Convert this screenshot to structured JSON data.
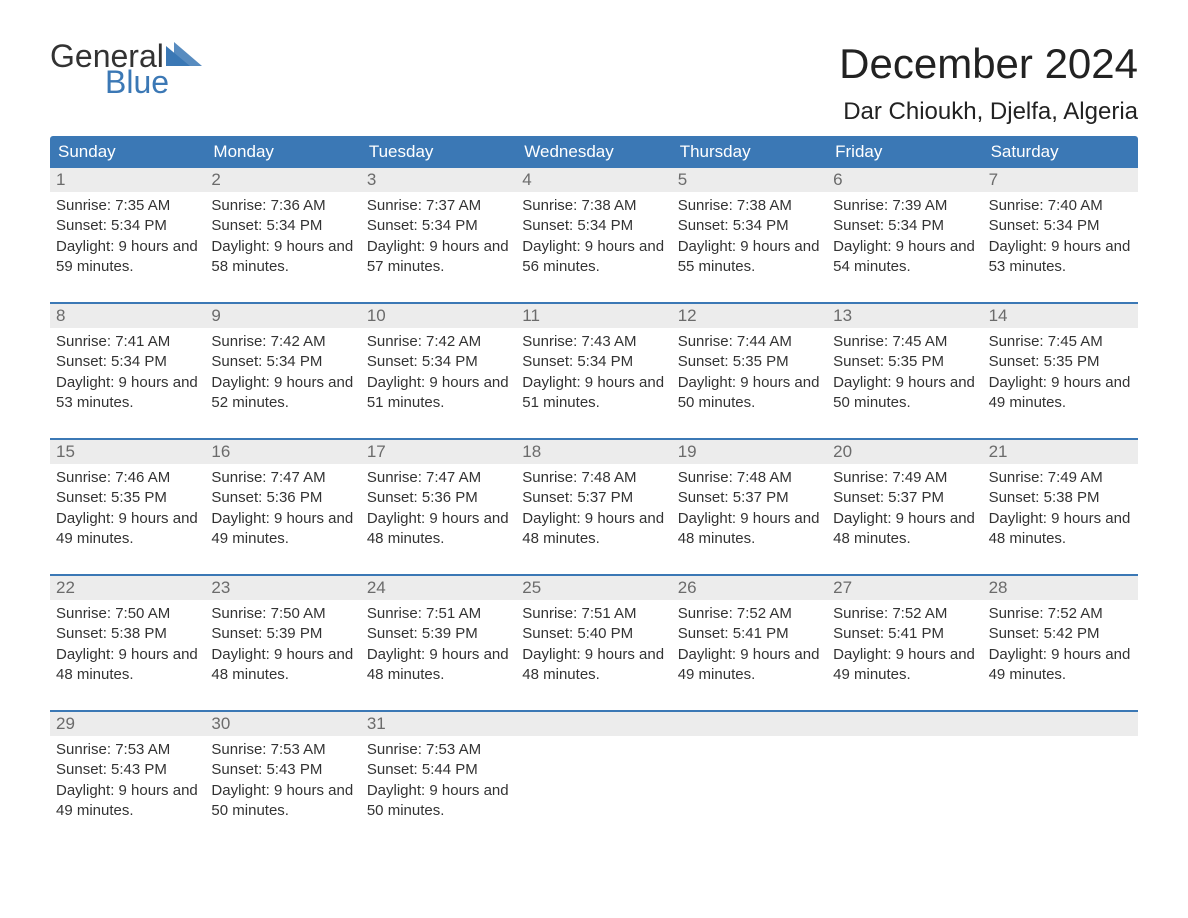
{
  "logo": {
    "text1": "General",
    "text2": "Blue",
    "tri_color": "#3b78b5"
  },
  "title": "December 2024",
  "location": "Dar Chioukh, Djelfa, Algeria",
  "colors": {
    "header_bg": "#3b78b5",
    "header_text": "#ffffff",
    "daynum_bg": "#ececec",
    "daynum_text": "#6b6b6b",
    "body_text": "#333333",
    "week_border": "#3b78b5"
  },
  "dow": [
    "Sunday",
    "Monday",
    "Tuesday",
    "Wednesday",
    "Thursday",
    "Friday",
    "Saturday"
  ],
  "weeks": [
    [
      {
        "n": "1",
        "sr": "7:35 AM",
        "ss": "5:34 PM",
        "dl": "9 hours and 59 minutes."
      },
      {
        "n": "2",
        "sr": "7:36 AM",
        "ss": "5:34 PM",
        "dl": "9 hours and 58 minutes."
      },
      {
        "n": "3",
        "sr": "7:37 AM",
        "ss": "5:34 PM",
        "dl": "9 hours and 57 minutes."
      },
      {
        "n": "4",
        "sr": "7:38 AM",
        "ss": "5:34 PM",
        "dl": "9 hours and 56 minutes."
      },
      {
        "n": "5",
        "sr": "7:38 AM",
        "ss": "5:34 PM",
        "dl": "9 hours and 55 minutes."
      },
      {
        "n": "6",
        "sr": "7:39 AM",
        "ss": "5:34 PM",
        "dl": "9 hours and 54 minutes."
      },
      {
        "n": "7",
        "sr": "7:40 AM",
        "ss": "5:34 PM",
        "dl": "9 hours and 53 minutes."
      }
    ],
    [
      {
        "n": "8",
        "sr": "7:41 AM",
        "ss": "5:34 PM",
        "dl": "9 hours and 53 minutes."
      },
      {
        "n": "9",
        "sr": "7:42 AM",
        "ss": "5:34 PM",
        "dl": "9 hours and 52 minutes."
      },
      {
        "n": "10",
        "sr": "7:42 AM",
        "ss": "5:34 PM",
        "dl": "9 hours and 51 minutes."
      },
      {
        "n": "11",
        "sr": "7:43 AM",
        "ss": "5:34 PM",
        "dl": "9 hours and 51 minutes."
      },
      {
        "n": "12",
        "sr": "7:44 AM",
        "ss": "5:35 PM",
        "dl": "9 hours and 50 minutes."
      },
      {
        "n": "13",
        "sr": "7:45 AM",
        "ss": "5:35 PM",
        "dl": "9 hours and 50 minutes."
      },
      {
        "n": "14",
        "sr": "7:45 AM",
        "ss": "5:35 PM",
        "dl": "9 hours and 49 minutes."
      }
    ],
    [
      {
        "n": "15",
        "sr": "7:46 AM",
        "ss": "5:35 PM",
        "dl": "9 hours and 49 minutes."
      },
      {
        "n": "16",
        "sr": "7:47 AM",
        "ss": "5:36 PM",
        "dl": "9 hours and 49 minutes."
      },
      {
        "n": "17",
        "sr": "7:47 AM",
        "ss": "5:36 PM",
        "dl": "9 hours and 48 minutes."
      },
      {
        "n": "18",
        "sr": "7:48 AM",
        "ss": "5:37 PM",
        "dl": "9 hours and 48 minutes."
      },
      {
        "n": "19",
        "sr": "7:48 AM",
        "ss": "5:37 PM",
        "dl": "9 hours and 48 minutes."
      },
      {
        "n": "20",
        "sr": "7:49 AM",
        "ss": "5:37 PM",
        "dl": "9 hours and 48 minutes."
      },
      {
        "n": "21",
        "sr": "7:49 AM",
        "ss": "5:38 PM",
        "dl": "9 hours and 48 minutes."
      }
    ],
    [
      {
        "n": "22",
        "sr": "7:50 AM",
        "ss": "5:38 PM",
        "dl": "9 hours and 48 minutes."
      },
      {
        "n": "23",
        "sr": "7:50 AM",
        "ss": "5:39 PM",
        "dl": "9 hours and 48 minutes."
      },
      {
        "n": "24",
        "sr": "7:51 AM",
        "ss": "5:39 PM",
        "dl": "9 hours and 48 minutes."
      },
      {
        "n": "25",
        "sr": "7:51 AM",
        "ss": "5:40 PM",
        "dl": "9 hours and 48 minutes."
      },
      {
        "n": "26",
        "sr": "7:52 AM",
        "ss": "5:41 PM",
        "dl": "9 hours and 49 minutes."
      },
      {
        "n": "27",
        "sr": "7:52 AM",
        "ss": "5:41 PM",
        "dl": "9 hours and 49 minutes."
      },
      {
        "n": "28",
        "sr": "7:52 AM",
        "ss": "5:42 PM",
        "dl": "9 hours and 49 minutes."
      }
    ],
    [
      {
        "n": "29",
        "sr": "7:53 AM",
        "ss": "5:43 PM",
        "dl": "9 hours and 49 minutes."
      },
      {
        "n": "30",
        "sr": "7:53 AM",
        "ss": "5:43 PM",
        "dl": "9 hours and 50 minutes."
      },
      {
        "n": "31",
        "sr": "7:53 AM",
        "ss": "5:44 PM",
        "dl": "9 hours and 50 minutes."
      },
      null,
      null,
      null,
      null
    ]
  ],
  "labels": {
    "sunrise": "Sunrise:",
    "sunset": "Sunset:",
    "daylight": "Daylight:"
  }
}
